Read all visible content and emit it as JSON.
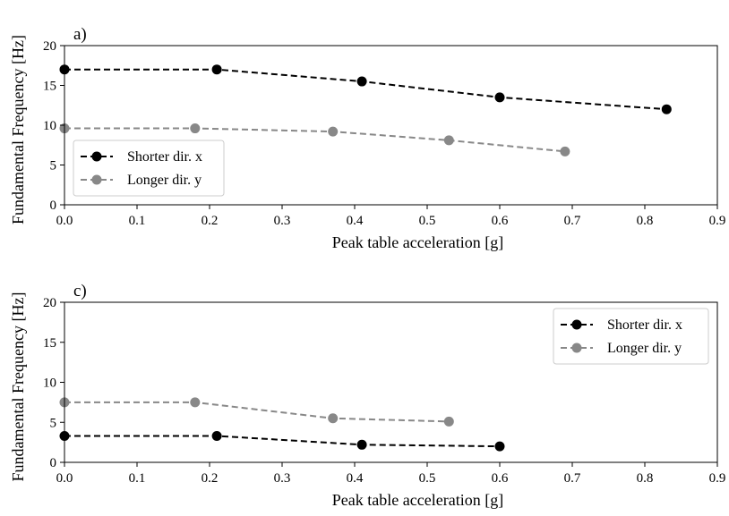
{
  "colors": {
    "shorter": "#000000",
    "longer": "#888888",
    "axis": "#000000",
    "legend_border": "#cccccc"
  },
  "chart_data": [
    {
      "type": "line",
      "panel_label": "a)",
      "xlabel": "Peak table acceleration [g]",
      "ylabel": "Fundamental Frequency [Hz]",
      "xlim": [
        0,
        0.9
      ],
      "ylim": [
        0,
        20
      ],
      "xticks": [
        "0.0",
        "0.1",
        "0.2",
        "0.3",
        "0.4",
        "0.5",
        "0.6",
        "0.7",
        "0.8",
        "0.9"
      ],
      "yticks": [
        "0",
        "5",
        "10",
        "15",
        "20"
      ],
      "grid": false,
      "legend_position": "lower-left",
      "series": [
        {
          "name": "Shorter dir. x",
          "color": "#000000",
          "linestyle": "dashed",
          "marker": "circle",
          "x": [
            0.0,
            0.21,
            0.41,
            0.6,
            0.83
          ],
          "y": [
            17.0,
            17.0,
            15.5,
            13.5,
            12.0
          ]
        },
        {
          "name": "Longer dir. y",
          "color": "#888888",
          "linestyle": "dashed",
          "marker": "circle",
          "x": [
            0.0,
            0.18,
            0.37,
            0.53,
            0.69
          ],
          "y": [
            9.6,
            9.6,
            9.2,
            8.1,
            6.7
          ]
        }
      ]
    },
    {
      "type": "line",
      "panel_label": "c)",
      "xlabel": "Peak table acceleration [g]",
      "ylabel": "Fundamental Frequency [Hz]",
      "xlim": [
        0,
        0.9
      ],
      "ylim": [
        0,
        20
      ],
      "xticks": [
        "0.0",
        "0.1",
        "0.2",
        "0.3",
        "0.4",
        "0.5",
        "0.6",
        "0.7",
        "0.8",
        "0.9"
      ],
      "yticks": [
        "0",
        "5",
        "10",
        "15",
        "20"
      ],
      "grid": false,
      "legend_position": "upper-right",
      "series": [
        {
          "name": "Shorter dir. x",
          "color": "#000000",
          "linestyle": "dashed",
          "marker": "circle",
          "x": [
            0.0,
            0.21,
            0.41,
            0.6
          ],
          "y": [
            3.3,
            3.3,
            2.2,
            2.0
          ]
        },
        {
          "name": "Longer dir. y",
          "color": "#888888",
          "linestyle": "dashed",
          "marker": "circle",
          "x": [
            0.0,
            0.18,
            0.37,
            0.53
          ],
          "y": [
            7.5,
            7.5,
            5.5,
            5.1
          ]
        }
      ]
    }
  ]
}
